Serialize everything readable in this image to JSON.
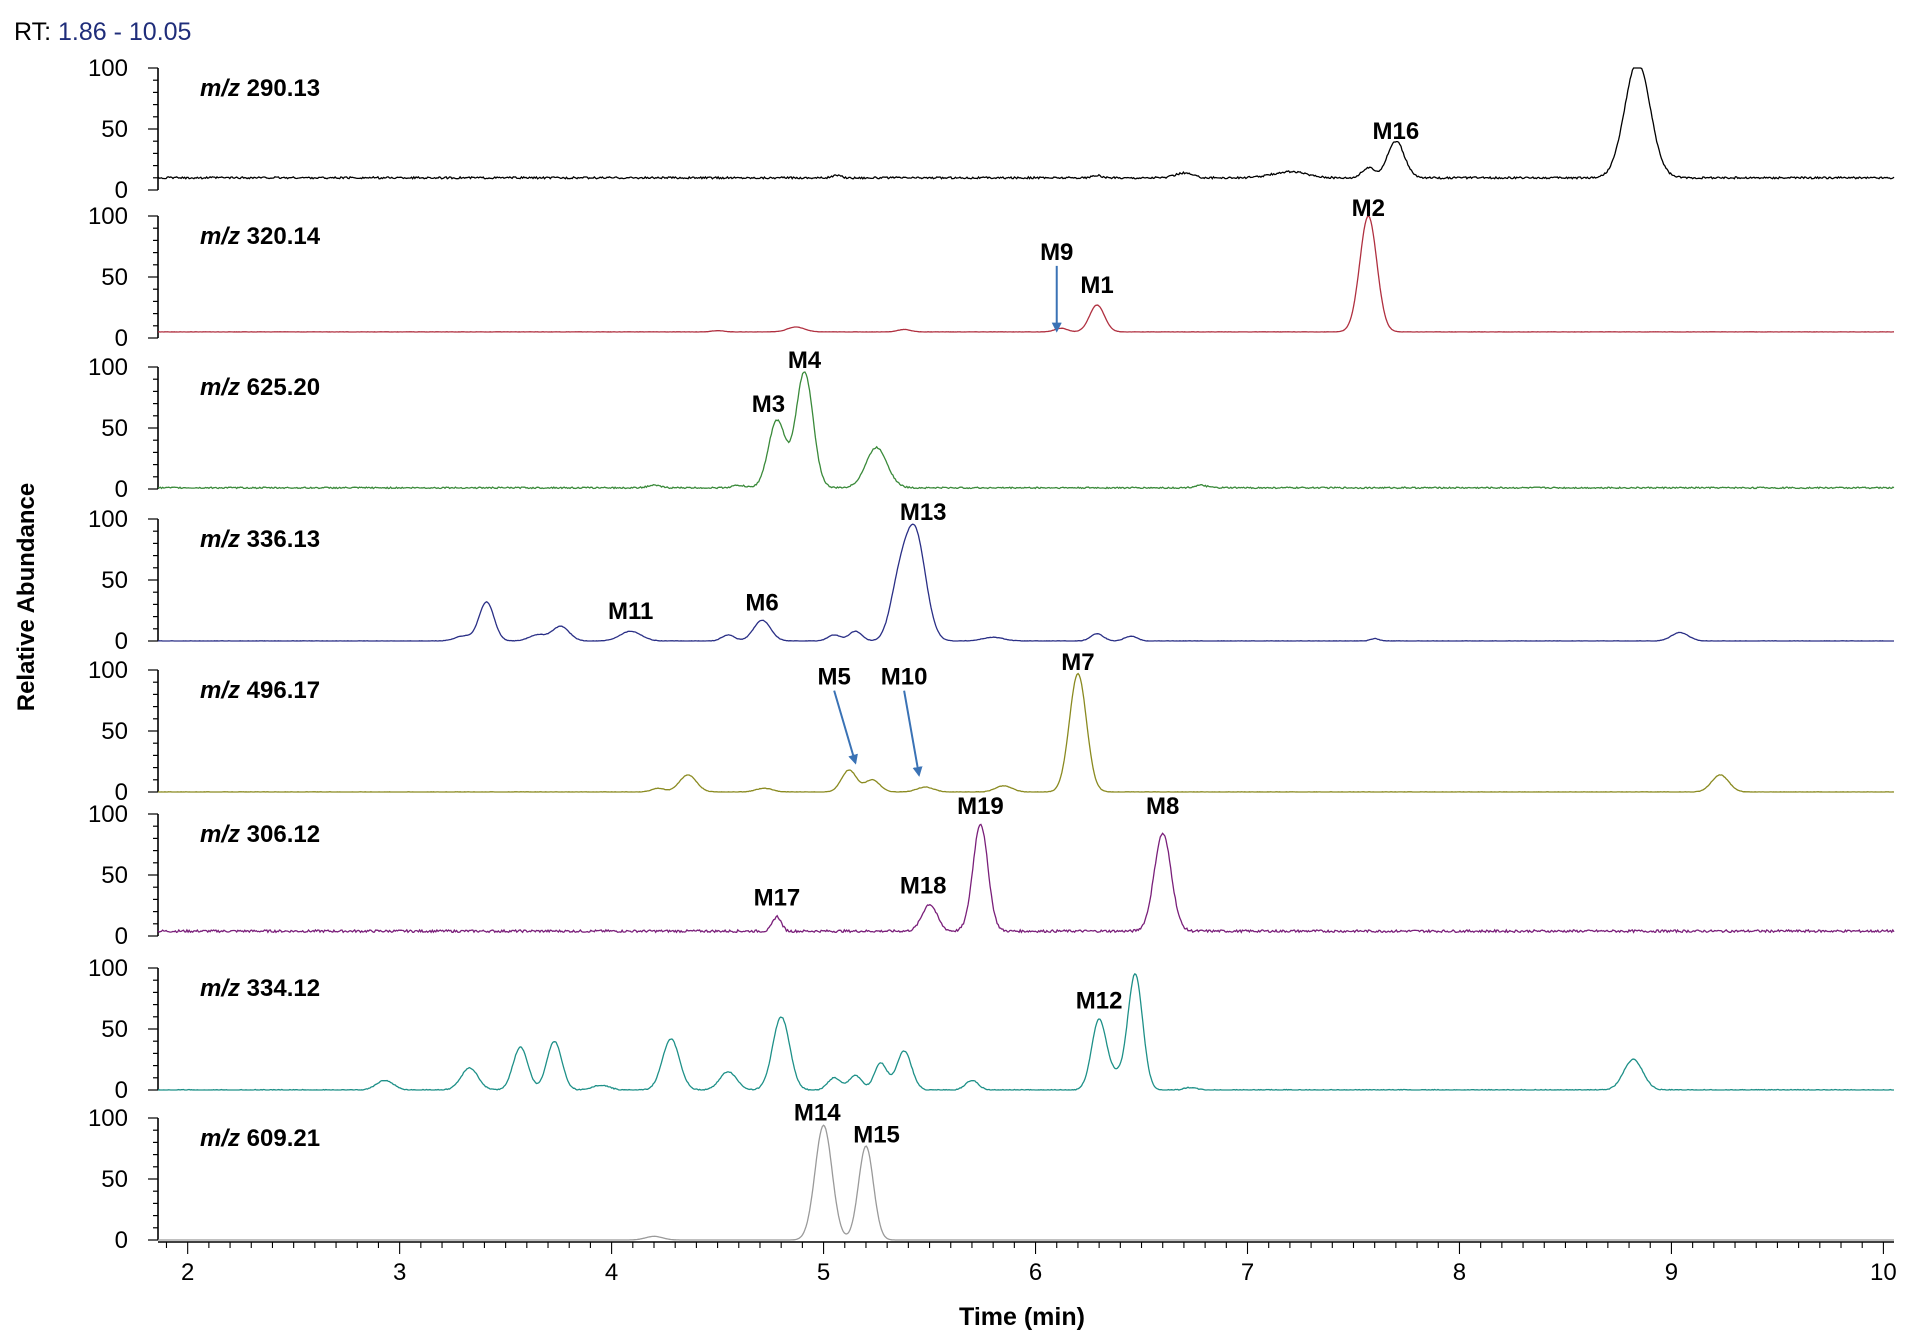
{
  "header": {
    "rt_prefix": "RT:",
    "rt_range": "1.86 - 10.05"
  },
  "chart_data": {
    "type": "line",
    "xlabel": "Time (min)",
    "ylabel": "Relative Abundance",
    "xlim": [
      1.86,
      10.05
    ],
    "ylim": [
      0,
      100
    ],
    "x_ticks": [
      2,
      3,
      4,
      5,
      6,
      7,
      8,
      9,
      10
    ],
    "y_ticks": [
      0,
      50,
      100
    ],
    "series": [
      {
        "name": "m/z 290.13",
        "mz": "290.13",
        "color": "#000000",
        "baseline": 10,
        "noise": 0.8,
        "peaks": [
          [
            5.06,
            2,
            0.02
          ],
          [
            6.29,
            2,
            0.02
          ],
          [
            6.7,
            4,
            0.04
          ],
          [
            7.2,
            5,
            0.08
          ],
          [
            7.57,
            8,
            0.03
          ],
          [
            7.7,
            30,
            0.04
          ],
          [
            8.84,
            95,
            0.06
          ]
        ],
        "labels": [
          {
            "text": "M16",
            "x": 7.7,
            "y": 42
          }
        ]
      },
      {
        "name": "m/z 320.14",
        "mz": "320.14",
        "color": "#b03040",
        "baseline": 5,
        "noise": 0.1,
        "peaks": [
          [
            4.5,
            1,
            0.03
          ],
          [
            4.87,
            4,
            0.04
          ],
          [
            5.38,
            2,
            0.03
          ],
          [
            6.12,
            3,
            0.03
          ],
          [
            6.29,
            22,
            0.035
          ],
          [
            7.57,
            95,
            0.04
          ]
        ],
        "labels": [
          {
            "text": "M2",
            "x": 7.57,
            "y": 100
          },
          {
            "text": "M1",
            "x": 6.29,
            "y": 37
          },
          {
            "text": "M9",
            "x": 6.1,
            "y": 64,
            "arrow_to": [
              6.1,
              6
            ]
          }
        ]
      },
      {
        "name": "m/z 625.20",
        "mz": "625.20",
        "color": "#3a8a3a",
        "baseline": 1,
        "noise": 0.6,
        "peaks": [
          [
            4.2,
            2,
            0.03
          ],
          [
            4.6,
            2,
            0.03
          ],
          [
            4.78,
            55,
            0.04
          ],
          [
            4.91,
            95,
            0.04
          ],
          [
            5.25,
            33,
            0.05
          ],
          [
            6.78,
            2,
            0.03
          ]
        ],
        "labels": [
          {
            "text": "M3",
            "x": 4.74,
            "y": 63
          },
          {
            "text": "M4",
            "x": 4.91,
            "y": 99
          }
        ]
      },
      {
        "name": "m/z 336.13",
        "mz": "336.13",
        "color": "#2a2f86",
        "baseline": 0,
        "noise": 0.2,
        "peaks": [
          [
            3.3,
            4,
            0.04
          ],
          [
            3.41,
            32,
            0.035
          ],
          [
            3.65,
            5,
            0.04
          ],
          [
            3.76,
            12,
            0.04
          ],
          [
            4.09,
            8,
            0.05
          ],
          [
            4.55,
            5,
            0.03
          ],
          [
            4.71,
            17,
            0.04
          ],
          [
            5.05,
            5,
            0.03
          ],
          [
            5.15,
            8,
            0.03
          ],
          [
            5.35,
            35,
            0.04
          ],
          [
            5.43,
            90,
            0.05
          ],
          [
            5.8,
            3,
            0.05
          ],
          [
            6.29,
            6,
            0.03
          ],
          [
            6.45,
            4,
            0.03
          ],
          [
            7.6,
            2,
            0.02
          ],
          [
            9.04,
            7,
            0.04
          ]
        ],
        "labels": [
          {
            "text": "M11",
            "x": 4.09,
            "y": 18
          },
          {
            "text": "M6",
            "x": 4.71,
            "y": 25
          },
          {
            "text": "M13",
            "x": 5.47,
            "y": 99
          }
        ]
      },
      {
        "name": "m/z 496.17",
        "mz": "496.17",
        "color": "#8a8a20",
        "baseline": 0,
        "noise": 0.2,
        "peaks": [
          [
            4.22,
            3,
            0.03
          ],
          [
            4.36,
            14,
            0.04
          ],
          [
            4.72,
            3,
            0.04
          ],
          [
            5.12,
            18,
            0.035
          ],
          [
            5.23,
            10,
            0.035
          ],
          [
            5.48,
            4,
            0.04
          ],
          [
            5.85,
            5,
            0.04
          ],
          [
            6.2,
            97,
            0.04
          ],
          [
            9.23,
            14,
            0.04
          ]
        ],
        "labels": [
          {
            "text": "M7",
            "x": 6.2,
            "y": 100
          },
          {
            "text": "M5",
            "x": 5.05,
            "y": 88,
            "arrow_to": [
              5.15,
              24
            ]
          },
          {
            "text": "M10",
            "x": 5.38,
            "y": 88,
            "arrow_to": [
              5.45,
              14
            ]
          }
        ]
      },
      {
        "name": "m/z 306.12",
        "mz": "306.12",
        "color": "#7a1f7a",
        "baseline": 4,
        "noise": 1.0,
        "peaks": [
          [
            4.78,
            12,
            0.02
          ],
          [
            5.5,
            22,
            0.035
          ],
          [
            5.74,
            88,
            0.035
          ],
          [
            6.6,
            80,
            0.04
          ]
        ],
        "labels": [
          {
            "text": "M17",
            "x": 4.78,
            "y": 25
          },
          {
            "text": "M18",
            "x": 5.47,
            "y": 35
          },
          {
            "text": "M19",
            "x": 5.74,
            "y": 100
          },
          {
            "text": "M8",
            "x": 6.6,
            "y": 100
          }
        ]
      },
      {
        "name": "m/z 334.12",
        "mz": "334.12",
        "color": "#1e9088",
        "baseline": 0,
        "noise": 0.4,
        "peaks": [
          [
            2.93,
            8,
            0.04
          ],
          [
            3.33,
            18,
            0.04
          ],
          [
            3.57,
            35,
            0.035
          ],
          [
            3.73,
            40,
            0.035
          ],
          [
            3.95,
            4,
            0.04
          ],
          [
            4.28,
            42,
            0.04
          ],
          [
            4.55,
            15,
            0.04
          ],
          [
            4.8,
            60,
            0.04
          ],
          [
            5.05,
            10,
            0.03
          ],
          [
            5.15,
            12,
            0.03
          ],
          [
            5.27,
            22,
            0.03
          ],
          [
            5.38,
            32,
            0.035
          ],
          [
            5.7,
            8,
            0.03
          ],
          [
            6.3,
            58,
            0.035
          ],
          [
            6.38,
            10,
            0.03
          ],
          [
            6.47,
            95,
            0.035
          ],
          [
            6.73,
            2,
            0.03
          ],
          [
            8.82,
            25,
            0.045
          ]
        ],
        "labels": [
          {
            "text": "M12",
            "x": 6.3,
            "y": 67
          }
        ]
      },
      {
        "name": "m/z 609.21",
        "mz": "609.21",
        "color": "#9a9a9a",
        "baseline": 0,
        "noise": 0.0,
        "peaks": [
          [
            4.2,
            3,
            0.04
          ],
          [
            5.0,
            94,
            0.04
          ],
          [
            5.2,
            77,
            0.035
          ]
        ],
        "labels": [
          {
            "text": "M14",
            "x": 4.97,
            "y": 98
          },
          {
            "text": "M15",
            "x": 5.25,
            "y": 80
          }
        ]
      }
    ]
  }
}
